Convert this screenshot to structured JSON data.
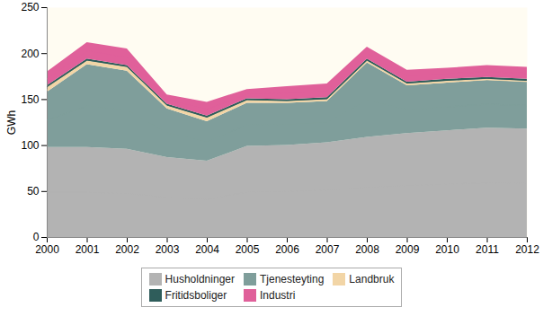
{
  "chart_data": {
    "type": "area",
    "stacked": true,
    "grid": false,
    "legend": "bottom",
    "y_label": "GWh",
    "x": [
      2000,
      2001,
      2002,
      2003,
      2004,
      2005,
      2006,
      2007,
      2008,
      2009,
      2010,
      2011,
      2012
    ],
    "xlim": [
      2000,
      2012
    ],
    "xticks": [
      2000,
      2001,
      2002,
      2003,
      2004,
      2005,
      2006,
      2007,
      2008,
      2009,
      2010,
      2011,
      2012
    ],
    "ylim": [
      0,
      250
    ],
    "yticks": [
      0,
      50,
      100,
      150,
      200,
      250
    ],
    "series": [
      {
        "name": "Husholdninger",
        "color": "#b3b3b3",
        "values": [
          98,
          98,
          96,
          87,
          83,
          99,
          100,
          103,
          109,
          113,
          116,
          119,
          118
        ]
      },
      {
        "name": "Tjenesteyting",
        "color": "#7f9e9b",
        "values": [
          60,
          90,
          85,
          53,
          43,
          47,
          46,
          45,
          81,
          52,
          52,
          52,
          51
        ]
      },
      {
        "name": "Landbruk",
        "color": "#f2d5a6",
        "values": [
          5,
          4,
          4,
          3,
          4,
          3,
          2,
          2,
          2,
          2,
          2,
          1,
          1
        ]
      },
      {
        "name": "Fritidsboliger",
        "color": "#2f5d5b",
        "values": [
          2,
          2,
          2,
          2,
          2,
          2,
          2,
          2,
          2,
          2,
          2,
          2,
          2
        ]
      },
      {
        "name": "Industri",
        "color": "#e0609a",
        "values": [
          15,
          18,
          18,
          10,
          15,
          10,
          14,
          15,
          13,
          13,
          12,
          13,
          13
        ]
      }
    ]
  }
}
